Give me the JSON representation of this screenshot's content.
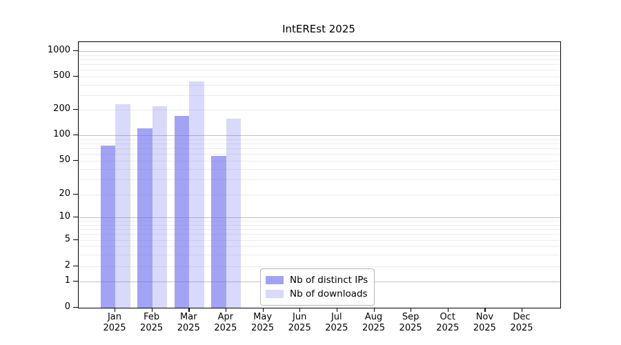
{
  "title": "IntEREst 2025",
  "chart_data": {
    "type": "bar",
    "title": "IntEREst 2025",
    "xlabel": "",
    "ylabel": "",
    "year": "2025",
    "months": [
      "Jan",
      "Feb",
      "Mar",
      "Apr",
      "May",
      "Jun",
      "Jul",
      "Aug",
      "Sep",
      "Oct",
      "Nov",
      "Dec"
    ],
    "categories": [
      "Jan 2025",
      "Feb 2025",
      "Mar 2025",
      "Apr 2025",
      "May 2025",
      "Jun 2025",
      "Jul 2025",
      "Aug 2025",
      "Sep 2025",
      "Oct 2025",
      "Nov 2025",
      "Dec 2025"
    ],
    "series": [
      {
        "name": "Nb of distinct IPs",
        "color": "#6666ee",
        "opacity": 0.6,
        "values": [
          75,
          120,
          170,
          57,
          0,
          0,
          0,
          0,
          0,
          0,
          0,
          0
        ]
      },
      {
        "name": "Nb of downloads",
        "color": "#6666ee",
        "opacity": 0.25,
        "values": [
          232,
          220,
          435,
          158,
          0,
          0,
          0,
          0,
          0,
          0,
          0,
          0
        ]
      }
    ],
    "y_scale": "symlog",
    "y_ticks": [
      0,
      1,
      2,
      5,
      10,
      20,
      50,
      100,
      200,
      500,
      1000
    ],
    "ylim_approx": [
      0,
      1250
    ],
    "grid": true,
    "y_gridlines_major": [
      1,
      10,
      100,
      1000
    ],
    "y_gridlines_minor": [
      2,
      3,
      4,
      5,
      6,
      7,
      8,
      9,
      20,
      30,
      40,
      50,
      60,
      70,
      80,
      90,
      200,
      300,
      400,
      500,
      600,
      700,
      800,
      900
    ],
    "legend_position": "lower center inside plot"
  },
  "colors": {
    "bar_base": "#6666ee",
    "grid_major": "#c0c0c0",
    "grid_minor": "#ececec",
    "spine": "#000000",
    "background": "#ffffff"
  }
}
